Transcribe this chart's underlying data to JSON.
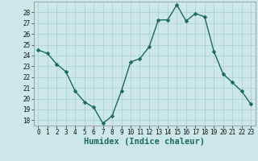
{
  "x": [
    0,
    1,
    2,
    3,
    4,
    5,
    6,
    7,
    8,
    9,
    10,
    11,
    12,
    13,
    14,
    15,
    16,
    17,
    18,
    19,
    20,
    21,
    22,
    23
  ],
  "y": [
    24.5,
    24.2,
    23.2,
    22.5,
    20.7,
    19.7,
    19.2,
    17.7,
    18.4,
    20.7,
    23.4,
    23.7,
    24.8,
    27.3,
    27.3,
    28.7,
    27.2,
    27.9,
    27.6,
    24.4,
    22.3,
    21.5,
    20.7,
    19.5
  ],
  "line_color": "#1a6b5a",
  "marker": "D",
  "marker_size": 2.5,
  "bg_color": "#cce8e8",
  "grid_color": "#aacfcf",
  "xlabel": "Humidex (Indice chaleur)",
  "ylim": [
    17.5,
    29.0
  ],
  "xlim": [
    -0.5,
    23.5
  ],
  "yticks": [
    18,
    19,
    20,
    21,
    22,
    23,
    24,
    25,
    26,
    27,
    28
  ],
  "xticks": [
    0,
    1,
    2,
    3,
    4,
    5,
    6,
    7,
    8,
    9,
    10,
    11,
    12,
    13,
    14,
    15,
    16,
    17,
    18,
    19,
    20,
    21,
    22,
    23
  ],
  "tick_fontsize": 5.5,
  "xlabel_fontsize": 7.5,
  "line_width": 1.0
}
